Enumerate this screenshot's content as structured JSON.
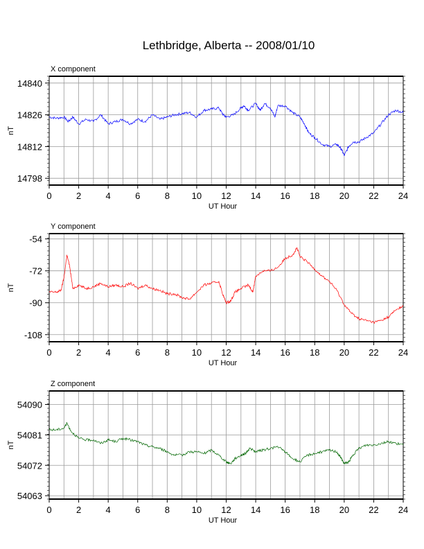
{
  "page_title": "Lethbridge, Alberta -- 2008/01/10",
  "chart_data": [
    {
      "type": "line",
      "title": "X component",
      "xlabel": "UT Hour",
      "ylabel": "nT",
      "xlim": [
        0,
        24
      ],
      "ylim": [
        14795,
        14843
      ],
      "xticks": [
        0,
        2,
        4,
        6,
        8,
        10,
        12,
        14,
        16,
        18,
        20,
        22,
        24
      ],
      "yticks": [
        14798,
        14812,
        14826,
        14840
      ],
      "grid": true,
      "series": [
        {
          "color": "#0000ff",
          "x": [
            0,
            0.5,
            1,
            1.3,
            1.6,
            2,
            2.5,
            3,
            3.5,
            4,
            4.5,
            5,
            5.5,
            6,
            6.5,
            7,
            7.5,
            8,
            8.5,
            9,
            9.5,
            10,
            10.5,
            11,
            11.5,
            11.8,
            12,
            12.5,
            13,
            13.2,
            13.5,
            14,
            14.3,
            14.6,
            15,
            15.3,
            15.5,
            16,
            16.5,
            17,
            17.3,
            17.6,
            18,
            18.5,
            19,
            19.5,
            19.8,
            20,
            20.3,
            20.6,
            21,
            21.5,
            22,
            22.5,
            23,
            23.5,
            24
          ],
          "values": [
            14825,
            14824.5,
            14825,
            14823,
            14825,
            14822,
            14824,
            14823,
            14826,
            14822,
            14823,
            14824,
            14822,
            14824,
            14823,
            14826,
            14824,
            14825,
            14826,
            14826.5,
            14827,
            14825,
            14828,
            14828.5,
            14829,
            14826,
            14825,
            14826,
            14829,
            14830,
            14828,
            14831,
            14828,
            14831,
            14829,
            14825,
            14830,
            14830,
            14827,
            14825,
            14822,
            14818,
            14816,
            14813,
            14812,
            14813,
            14811,
            14808,
            14812,
            14814,
            14814,
            14816,
            14818,
            14822,
            14826,
            14828,
            14827
          ]
        }
      ]
    },
    {
      "type": "line",
      "title": "Y component",
      "xlabel": "UT Hour",
      "ylabel": "nT",
      "xlim": [
        0,
        24
      ],
      "ylim": [
        -112,
        -51
      ],
      "xticks": [
        0,
        2,
        4,
        6,
        8,
        10,
        12,
        14,
        16,
        18,
        20,
        22,
        24
      ],
      "yticks": [
        -54,
        -72,
        -90,
        -108
      ],
      "grid": true,
      "series": [
        {
          "color": "#ff0000",
          "x": [
            0,
            0.5,
            0.8,
            1,
            1.2,
            1.4,
            1.6,
            2,
            2.5,
            3,
            3.5,
            4,
            4.5,
            5,
            5.5,
            6,
            6.5,
            7,
            7.5,
            8,
            8.5,
            9,
            9.5,
            10,
            10.5,
            11,
            11.5,
            11.8,
            12,
            12.3,
            12.6,
            13,
            13.5,
            13.8,
            14,
            14.5,
            15,
            15.5,
            16,
            16.5,
            16.8,
            17,
            17.5,
            18,
            18.5,
            19,
            19.5,
            20,
            20.5,
            21,
            21.5,
            22,
            22.5,
            23,
            23.5,
            24
          ],
          "values": [
            -84,
            -84,
            -83,
            -76,
            -63,
            -70,
            -82,
            -80,
            -82,
            -81,
            -79,
            -81,
            -80,
            -81,
            -79,
            -82,
            -80,
            -82,
            -83,
            -85,
            -85,
            -87,
            -88,
            -84,
            -80,
            -79,
            -78,
            -86,
            -90,
            -89,
            -84,
            -82,
            -80,
            -84,
            -75,
            -72,
            -72,
            -70,
            -65,
            -63,
            -59,
            -64,
            -67,
            -71,
            -75,
            -78,
            -83,
            -91,
            -96,
            -99,
            -100,
            -101,
            -100,
            -98,
            -94,
            -92
          ]
        }
      ]
    },
    {
      "type": "line",
      "title": "Z component",
      "xlabel": "UT Hour",
      "ylabel": "nT",
      "xlim": [
        0,
        24
      ],
      "ylim": [
        54062,
        54094
      ],
      "xticks": [
        0,
        2,
        4,
        6,
        8,
        10,
        12,
        14,
        16,
        18,
        20,
        22,
        24
      ],
      "yticks": [
        54063,
        54072,
        54081,
        54090
      ],
      "grid": true,
      "series": [
        {
          "color": "#006600",
          "x": [
            0,
            0.5,
            1,
            1.2,
            1.5,
            2,
            2.5,
            3,
            3.5,
            4,
            4.5,
            5,
            5.5,
            6,
            6.5,
            7,
            7.5,
            8,
            8.5,
            9,
            9.5,
            10,
            10.5,
            11,
            11.5,
            12,
            12.3,
            12.6,
            13,
            13.3,
            13.6,
            14,
            14.5,
            15,
            15.5,
            16,
            16.5,
            17,
            17.5,
            18,
            18.5,
            19,
            19.5,
            19.8,
            20,
            20.3,
            20.6,
            21,
            21.5,
            22,
            22.5,
            23,
            23.5,
            24
          ],
          "values": [
            54082.5,
            54082.5,
            54083,
            54084.5,
            54082,
            54080,
            54079.5,
            54079.5,
            54078.5,
            54079.5,
            54079,
            54080,
            54079.5,
            54079,
            54078,
            54077.5,
            54077,
            54076,
            54075,
            54075,
            54076,
            54076,
            54075.5,
            54076.5,
            54075,
            54073,
            54072.5,
            54074,
            54075,
            54075.5,
            54077,
            54076,
            54076.5,
            54077,
            54077.5,
            54076,
            54074,
            54073,
            54075,
            54075.5,
            54076,
            54076.5,
            54076,
            54074,
            54072.5,
            54073,
            54075,
            54077,
            54078,
            54078,
            54078.5,
            54079,
            54078.5,
            54078
          ]
        }
      ]
    }
  ]
}
